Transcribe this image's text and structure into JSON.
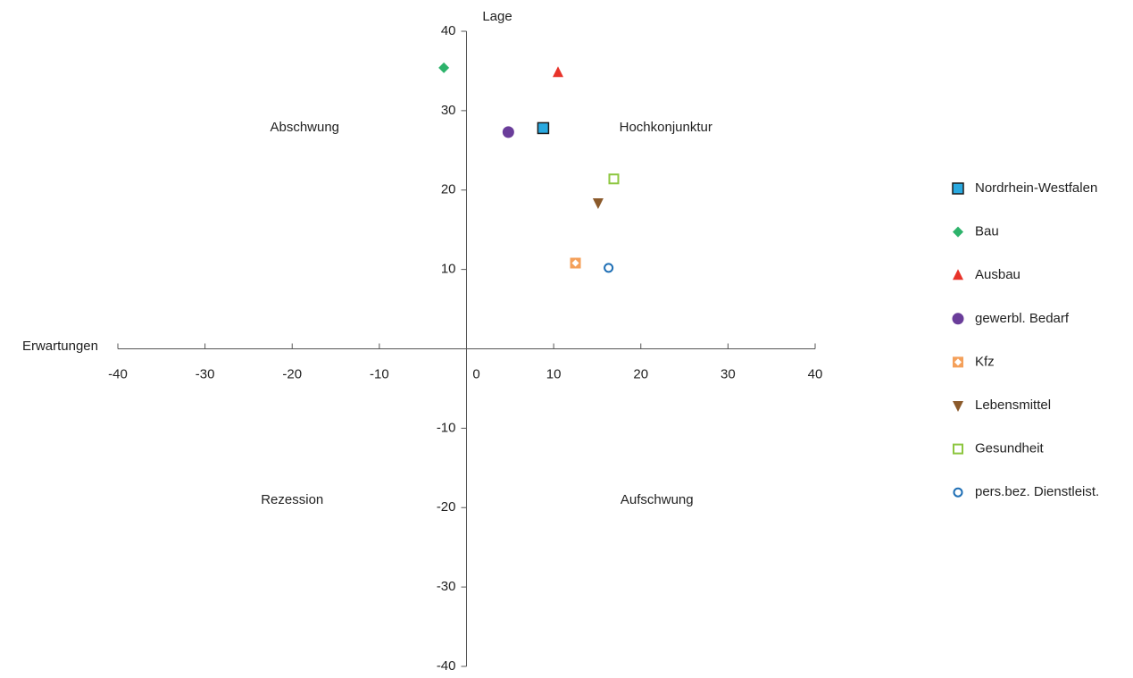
{
  "chart_data": {
    "type": "scatter",
    "x_label": "Erwartungen",
    "y_label": "Lage",
    "quadrant_labels": [
      "Abschwung",
      "Hochkonjunktur",
      "Rezession",
      "Aufschwung"
    ],
    "xlim": [
      -40,
      40
    ],
    "ylim": [
      -40,
      40
    ],
    "xticks": [
      -40,
      -30,
      -20,
      -10,
      0,
      10,
      20,
      30,
      40
    ],
    "yticks": [
      -40,
      -30,
      -20,
      -10,
      10,
      20,
      30,
      40
    ],
    "legend": "right",
    "series": [
      {
        "name": "Nordrhein-Westfalen",
        "color": "#29a9e0",
        "marker": "square",
        "x": [
          8.8
        ],
        "values": [
          27.8
        ]
      },
      {
        "name": "Bau",
        "color": "#2db36b",
        "marker": "diamond",
        "x": [
          -2.6
        ],
        "values": [
          35.4
        ]
      },
      {
        "name": "Ausbau",
        "color": "#e8332a",
        "marker": "triangle",
        "x": [
          10.5
        ],
        "values": [
          34.8
        ]
      },
      {
        "name": "gewerbl. Bedarf",
        "color": "#6a3d9a",
        "marker": "circle",
        "x": [
          4.8
        ],
        "values": [
          27.3
        ]
      },
      {
        "name": "Kfz",
        "color": "#f4a05a",
        "marker": "square-diamond",
        "x": [
          12.5
        ],
        "values": [
          10.8
        ]
      },
      {
        "name": "Lebensmittel",
        "color": "#8b5a2b",
        "marker": "triangle-down",
        "x": [
          15.1
        ],
        "values": [
          18.4
        ]
      },
      {
        "name": "Gesundheit",
        "color": "#8dc63f",
        "marker": "hollow-square",
        "x": [
          16.9
        ],
        "values": [
          21.4
        ]
      },
      {
        "name": "pers.bez. Dienstleist.",
        "color": "#1f6fb5",
        "marker": "hollow-circle",
        "x": [
          16.3
        ],
        "values": [
          10.2
        ]
      }
    ]
  }
}
